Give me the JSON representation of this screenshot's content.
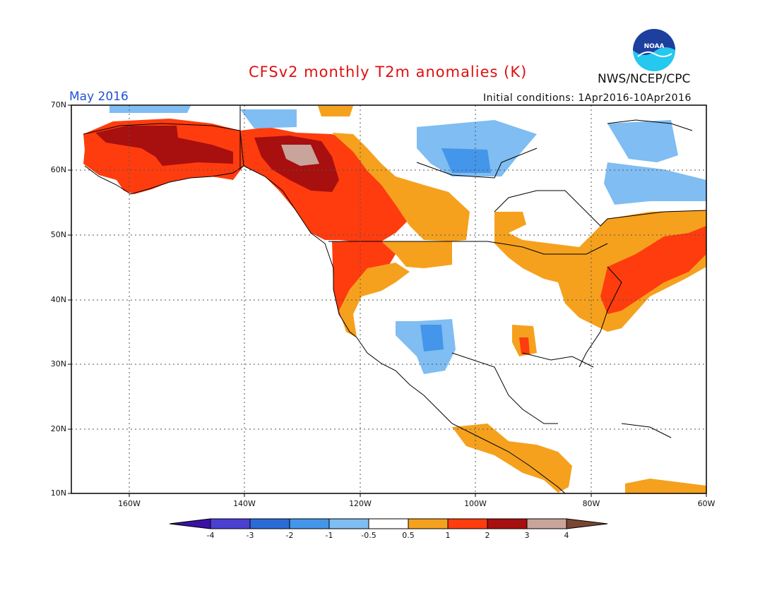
{
  "header": {
    "title": "CFSv2 monthly T2m anomalies (K)",
    "month": "May 2016",
    "initial_conditions": "Initial conditions: 1Apr2016-10Apr2016",
    "organization": "NWS/NCEP/CPC",
    "logo_text": "NOAA"
  },
  "map": {
    "region": "North America",
    "lon_range": [
      -170,
      -60
    ],
    "lat_range": [
      10,
      70
    ],
    "lat_labels": [
      "70N",
      "60N",
      "50N",
      "40N",
      "30N",
      "20N",
      "10N"
    ],
    "lon_labels": [
      "160W",
      "140W",
      "120W",
      "100W",
      "80W",
      "60W"
    ],
    "gridlines": "dotted"
  },
  "legend": {
    "labels": [
      "-4",
      "-3",
      "-2",
      "-1",
      "-0.5",
      "0.5",
      "1",
      "2",
      "3",
      "4"
    ],
    "colors": [
      "#3a12a8",
      "#4b40d2",
      "#2a6bd6",
      "#4496ea",
      "#7fbdf2",
      "#ffffff",
      "#f5a11e",
      "#ff3c0e",
      "#a80f0f",
      "#c8a49a",
      "#7a4632"
    ]
  },
  "colors": {
    "title": "#e01010",
    "month": "#2050d8",
    "logo_blue": "#1d3f9e",
    "logo_cyan": "#25c8ee"
  }
}
